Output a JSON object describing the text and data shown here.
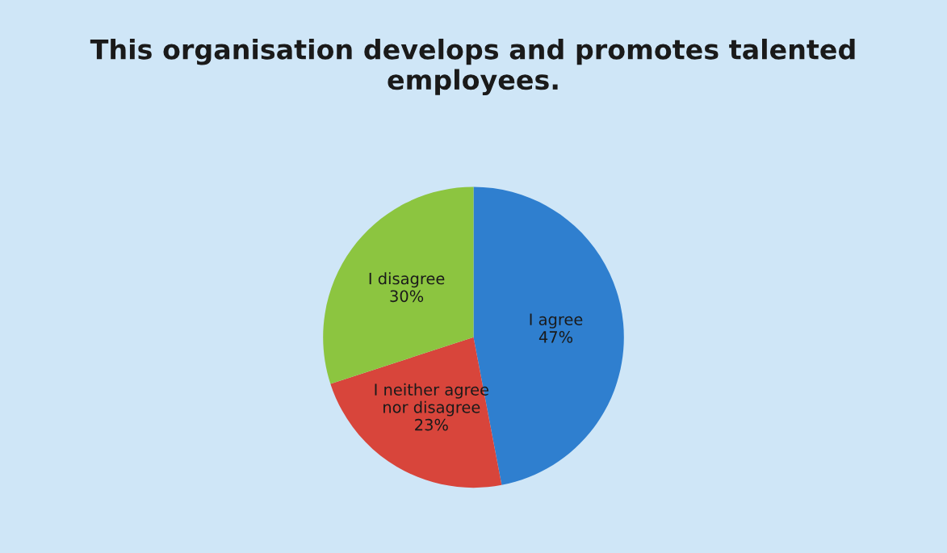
{
  "chart_data": {
    "type": "pie",
    "title": "This organisation develops and promotes talented employees.",
    "categories": [
      "I agree",
      "I neither agree nor disagree",
      "I disagree"
    ],
    "values": [
      47,
      23,
      30
    ],
    "colors": [
      "#2f7fcf",
      "#d8453b",
      "#8cc540"
    ],
    "value_labels": [
      "47%",
      "23%",
      "30%"
    ]
  }
}
